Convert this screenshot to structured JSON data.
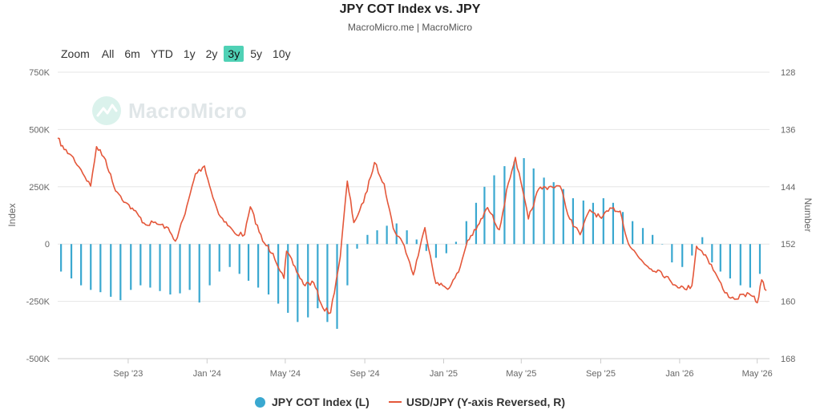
{
  "header": {
    "title": "JPY COT Index vs. JPY",
    "subtitle": "MacroMicro.me | MacroMicro"
  },
  "zoom": {
    "label": "Zoom",
    "buttons": [
      "All",
      "6m",
      "YTD",
      "1y",
      "2y",
      "3y",
      "5y",
      "10y"
    ],
    "active": "3y"
  },
  "watermark": {
    "text": "MacroMicro"
  },
  "legend": {
    "cot": "JPY COT Index (L)",
    "usdjpy": "USD/JPY (Y-axis Reversed, R)"
  },
  "colors": {
    "cot": "#3aa8d0",
    "usdjpy": "#e4573a",
    "active_zoom": "#4fd1b5"
  },
  "chart_data": {
    "type": "bar+line",
    "x_range": [
      "2023-05-15",
      "2026-05-20"
    ],
    "x_ticks": [
      {
        "label": "Sep '23",
        "date": "2023-09-01"
      },
      {
        "label": "Jan '24",
        "date": "2024-01-01"
      },
      {
        "label": "May '24",
        "date": "2024-05-01"
      },
      {
        "label": "Sep '24",
        "date": "2024-09-01"
      },
      {
        "label": "Jan '25",
        "date": "2025-01-01"
      },
      {
        "label": "May '25",
        "date": "2025-05-01"
      },
      {
        "label": "Sep '25",
        "date": "2025-09-01"
      },
      {
        "label": "Jan '26",
        "date": "2026-01-01"
      },
      {
        "label": "May '26",
        "date": "2026-05-01"
      }
    ],
    "left_axis": {
      "title": "Index",
      "min": -500000,
      "max": 750000,
      "ticks": [
        {
          "value": 750000,
          "label": "750K"
        },
        {
          "value": 500000,
          "label": "500K"
        },
        {
          "value": 250000,
          "label": "250K"
        },
        {
          "value": 0,
          "label": "0"
        },
        {
          "value": -250000,
          "label": "-250K"
        },
        {
          "value": -500000,
          "label": "-500K"
        }
      ]
    },
    "right_axis": {
      "title": "Number",
      "reversed": true,
      "min": 128,
      "max": 168,
      "ticks": [
        128,
        136,
        144,
        152,
        160,
        168
      ]
    },
    "series": [
      {
        "name": "JPY COT Index (L)",
        "type": "bar",
        "axis": "left",
        "points": [
          [
            "2023-05-20",
            -120000
          ],
          [
            "2023-06-05",
            -150000
          ],
          [
            "2023-06-20",
            -180000
          ],
          [
            "2023-07-05",
            -200000
          ],
          [
            "2023-07-20",
            -210000
          ],
          [
            "2023-08-05",
            -230000
          ],
          [
            "2023-08-20",
            -245000
          ],
          [
            "2023-09-05",
            -200000
          ],
          [
            "2023-09-20",
            -180000
          ],
          [
            "2023-10-05",
            -190000
          ],
          [
            "2023-10-20",
            -205000
          ],
          [
            "2023-11-05",
            -220000
          ],
          [
            "2023-11-20",
            -215000
          ],
          [
            "2023-12-05",
            -200000
          ],
          [
            "2023-12-20",
            -255000
          ],
          [
            "2024-01-05",
            -180000
          ],
          [
            "2024-01-20",
            -120000
          ],
          [
            "2024-02-05",
            -100000
          ],
          [
            "2024-02-20",
            -130000
          ],
          [
            "2024-03-05",
            -160000
          ],
          [
            "2024-03-20",
            -190000
          ],
          [
            "2024-04-05",
            -220000
          ],
          [
            "2024-04-20",
            -260000
          ],
          [
            "2024-05-05",
            -300000
          ],
          [
            "2024-05-20",
            -340000
          ],
          [
            "2024-06-05",
            -320000
          ],
          [
            "2024-06-20",
            -280000
          ],
          [
            "2024-07-05",
            -340000
          ],
          [
            "2024-07-20",
            -370000
          ],
          [
            "2024-08-05",
            -180000
          ],
          [
            "2024-08-20",
            -20000
          ],
          [
            "2024-09-05",
            40000
          ],
          [
            "2024-09-20",
            60000
          ],
          [
            "2024-10-05",
            80000
          ],
          [
            "2024-10-20",
            90000
          ],
          [
            "2024-11-05",
            60000
          ],
          [
            "2024-11-20",
            20000
          ],
          [
            "2024-12-05",
            -30000
          ],
          [
            "2024-12-20",
            -60000
          ],
          [
            "2025-01-05",
            -40000
          ],
          [
            "2025-01-20",
            10000
          ],
          [
            "2025-02-05",
            100000
          ],
          [
            "2025-02-20",
            180000
          ],
          [
            "2025-03-05",
            250000
          ],
          [
            "2025-03-20",
            300000
          ],
          [
            "2025-04-05",
            340000
          ],
          [
            "2025-04-20",
            360000
          ],
          [
            "2025-05-05",
            375000
          ],
          [
            "2025-05-20",
            330000
          ],
          [
            "2025-06-05",
            290000
          ],
          [
            "2025-06-20",
            270000
          ],
          [
            "2025-07-05",
            240000
          ],
          [
            "2025-07-20",
            200000
          ],
          [
            "2025-08-05",
            190000
          ],
          [
            "2025-08-20",
            180000
          ],
          [
            "2025-09-05",
            200000
          ],
          [
            "2025-09-20",
            180000
          ],
          [
            "2025-10-05",
            140000
          ],
          [
            "2025-10-20",
            100000
          ],
          [
            "2025-11-05",
            70000
          ],
          [
            "2025-11-20",
            40000
          ],
          [
            "2025-12-05",
            0
          ],
          [
            "2025-12-20",
            -80000
          ],
          [
            "2026-01-05",
            -100000
          ],
          [
            "2026-01-20",
            -50000
          ],
          [
            "2026-02-05",
            30000
          ],
          [
            "2026-02-20",
            -80000
          ],
          [
            "2026-03-05",
            -120000
          ],
          [
            "2026-03-20",
            -150000
          ],
          [
            "2026-04-05",
            -180000
          ],
          [
            "2026-04-20",
            -190000
          ],
          [
            "2026-05-05",
            -130000
          ]
        ]
      },
      {
        "name": "USD/JPY (Y-axis Reversed, R)",
        "type": "line",
        "axis": "right",
        "points": [
          [
            "2023-05-15",
            137.2
          ],
          [
            "2023-05-25",
            138.8
          ],
          [
            "2023-06-05",
            139.6
          ],
          [
            "2023-06-20",
            141.6
          ],
          [
            "2023-07-05",
            143.9
          ],
          [
            "2023-07-14",
            138.4
          ],
          [
            "2023-07-28",
            140.2
          ],
          [
            "2023-08-10",
            144.0
          ],
          [
            "2023-08-28",
            146.2
          ],
          [
            "2023-09-10",
            147.3
          ],
          [
            "2023-09-28",
            149.3
          ],
          [
            "2023-10-10",
            149.0
          ],
          [
            "2023-10-30",
            149.6
          ],
          [
            "2023-11-13",
            151.6
          ],
          [
            "2023-11-28",
            147.8
          ],
          [
            "2023-12-14",
            142.2
          ],
          [
            "2023-12-28",
            141.1
          ],
          [
            "2024-01-10",
            145.5
          ],
          [
            "2024-01-22",
            148.2
          ],
          [
            "2024-02-13",
            150.5
          ],
          [
            "2024-02-28",
            150.7
          ],
          [
            "2024-03-08",
            146.8
          ],
          [
            "2024-03-27",
            151.6
          ],
          [
            "2024-04-12",
            153.3
          ],
          [
            "2024-04-29",
            156.8
          ],
          [
            "2024-05-03",
            153.0
          ],
          [
            "2024-05-29",
            157.6
          ],
          [
            "2024-06-14",
            157.4
          ],
          [
            "2024-06-28",
            160.9
          ],
          [
            "2024-07-10",
            161.6
          ],
          [
            "2024-07-25",
            153.8
          ],
          [
            "2024-08-05",
            143.2
          ],
          [
            "2024-08-15",
            149.0
          ],
          [
            "2024-08-30",
            146.2
          ],
          [
            "2024-09-16",
            140.6
          ],
          [
            "2024-10-01",
            143.6
          ],
          [
            "2024-10-15",
            149.8
          ],
          [
            "2024-11-01",
            152.2
          ],
          [
            "2024-11-15",
            156.3
          ],
          [
            "2024-12-03",
            149.7
          ],
          [
            "2024-12-20",
            157.5
          ],
          [
            "2025-01-10",
            158.1
          ],
          [
            "2025-01-24",
            155.9
          ],
          [
            "2025-02-07",
            151.5
          ],
          [
            "2025-02-20",
            150.0
          ],
          [
            "2025-03-10",
            146.9
          ],
          [
            "2025-03-28",
            150.0
          ],
          [
            "2025-04-11",
            143.5
          ],
          [
            "2025-04-22",
            139.9
          ],
          [
            "2025-05-12",
            148.5
          ],
          [
            "2025-05-28",
            144.3
          ],
          [
            "2025-06-13",
            144.0
          ],
          [
            "2025-06-30",
            143.9
          ],
          [
            "2025-07-15",
            148.5
          ],
          [
            "2025-07-31",
            150.7
          ],
          [
            "2025-08-15",
            147.2
          ],
          [
            "2025-09-02",
            148.4
          ],
          [
            "2025-09-18",
            147.0
          ],
          [
            "2025-10-01",
            147.4
          ],
          [
            "2025-10-14",
            152.0
          ],
          [
            "2025-10-31",
            154.0
          ],
          [
            "2025-11-18",
            155.5
          ],
          [
            "2025-12-01",
            155.7
          ],
          [
            "2025-12-19",
            157.3
          ],
          [
            "2026-01-09",
            158.3
          ],
          [
            "2026-01-20",
            157.8
          ],
          [
            "2026-01-27",
            152.3
          ],
          [
            "2026-02-10",
            153.5
          ],
          [
            "2026-02-25",
            156.0
          ],
          [
            "2026-03-12",
            158.8
          ],
          [
            "2026-03-27",
            159.7
          ],
          [
            "2026-04-10",
            159.0
          ],
          [
            "2026-04-24",
            159.3
          ],
          [
            "2026-05-01",
            160.2
          ],
          [
            "2026-05-08",
            157.0
          ],
          [
            "2026-05-15",
            158.5
          ]
        ]
      }
    ]
  }
}
